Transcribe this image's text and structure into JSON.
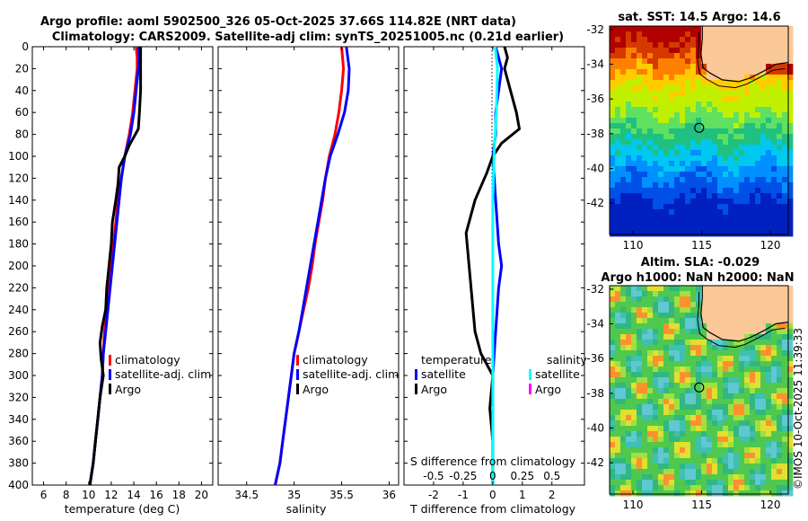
{
  "title": {
    "line1": "Argo profile: aoml 5902500_326 05-Oct-2025 37.66S 114.82E (NRT data)",
    "line2": "Climatology: CARS2009. Satellite-adj clim: synTS_20251005.nc (0.21d earlier)"
  },
  "side_label": "©IMOS 10-Oct-2025 11:39:33",
  "colors": {
    "climatology": "#ff0000",
    "satellite": "#0000ff",
    "argo": "#000000",
    "sal_satellite": "#00ffff",
    "sal_argo": "#ff00ff",
    "land": "#fbc898"
  },
  "chart_data": [
    {
      "type": "line",
      "id": "temperature",
      "xlabel": "temperature (deg C)",
      "ylabel": "",
      "xlim": [
        5,
        21
      ],
      "ylim": [
        400,
        0
      ],
      "xticks": [
        "6",
        "8",
        "10",
        "12",
        "14",
        "16",
        "18",
        "20"
      ],
      "xtick_values": [
        6,
        8,
        10,
        12,
        14,
        16,
        18,
        20
      ],
      "yticks": [
        "0",
        "20",
        "40",
        "60",
        "80",
        "100",
        "120",
        "140",
        "160",
        "180",
        "200",
        "220",
        "240",
        "260",
        "280",
        "300",
        "320",
        "340",
        "360",
        "380",
        "400"
      ],
      "ytick_values": [
        0,
        20,
        40,
        60,
        80,
        100,
        120,
        140,
        160,
        180,
        200,
        220,
        240,
        260,
        280,
        300,
        320,
        340,
        360,
        380,
        400
      ],
      "legend": [
        "climatology",
        "satellite-adj. clim",
        "Argo"
      ],
      "series": [
        {
          "name": "climatology",
          "color": "#ff0000",
          "points": [
            [
              14.2,
              0
            ],
            [
              14.3,
              10
            ],
            [
              14.3,
              20
            ],
            [
              14.1,
              40
            ],
            [
              13.9,
              60
            ],
            [
              13.6,
              80
            ],
            [
              13.2,
              100
            ],
            [
              12.9,
              120
            ],
            [
              12.6,
              140
            ],
            [
              12.4,
              160
            ],
            [
              12.2,
              180
            ],
            [
              12.0,
              200
            ],
            [
              11.8,
              220
            ],
            [
              11.6,
              240
            ],
            [
              11.4,
              260
            ],
            [
              11.3,
              280
            ],
            [
              11.2,
              300
            ],
            [
              11.0,
              320
            ],
            [
              10.8,
              340
            ],
            [
              10.6,
              360
            ],
            [
              10.4,
              380
            ],
            [
              10.1,
              400
            ]
          ]
        },
        {
          "name": "satellite-adj. clim",
          "color": "#0000ff",
          "points": [
            [
              14.4,
              0
            ],
            [
              14.5,
              10
            ],
            [
              14.4,
              20
            ],
            [
              14.2,
              40
            ],
            [
              14.0,
              60
            ],
            [
              13.7,
              80
            ],
            [
              13.2,
              100
            ],
            [
              12.9,
              120
            ],
            [
              12.7,
              140
            ],
            [
              12.5,
              160
            ],
            [
              12.3,
              180
            ],
            [
              12.1,
              200
            ],
            [
              11.9,
              220
            ],
            [
              11.7,
              240
            ],
            [
              11.5,
              260
            ],
            [
              11.3,
              280
            ],
            [
              11.2,
              300
            ],
            [
              11.0,
              320
            ],
            [
              10.8,
              340
            ],
            [
              10.6,
              360
            ],
            [
              10.4,
              380
            ],
            [
              10.1,
              400
            ]
          ]
        },
        {
          "name": "Argo",
          "color": "#000000",
          "points": [
            [
              14.6,
              0
            ],
            [
              14.6,
              20
            ],
            [
              14.6,
              40
            ],
            [
              14.5,
              60
            ],
            [
              14.4,
              75
            ],
            [
              13.6,
              90
            ],
            [
              13.2,
              100
            ],
            [
              12.7,
              110
            ],
            [
              12.6,
              125
            ],
            [
              12.4,
              140
            ],
            [
              12.1,
              160
            ],
            [
              12.0,
              180
            ],
            [
              11.8,
              200
            ],
            [
              11.6,
              220
            ],
            [
              11.5,
              240
            ],
            [
              11.2,
              255
            ],
            [
              11.0,
              270
            ],
            [
              11.1,
              285
            ],
            [
              11.3,
              300
            ],
            [
              11.0,
              320
            ],
            [
              10.8,
              340
            ],
            [
              10.6,
              360
            ],
            [
              10.4,
              380
            ],
            [
              10.1,
              400
            ]
          ]
        }
      ]
    },
    {
      "type": "line",
      "id": "salinity",
      "xlabel": "salinity",
      "xlim": [
        34.2,
        36.1
      ],
      "ylim": [
        400,
        0
      ],
      "xticks": [
        "34.5",
        "35",
        "35.5",
        "36"
      ],
      "xtick_values": [
        34.5,
        35.0,
        35.5,
        36.0
      ],
      "legend": [
        "climatology",
        "satellite-adj. clim",
        "Argo"
      ],
      "series": [
        {
          "name": "climatology",
          "color": "#ff0000",
          "points": [
            [
              35.5,
              0
            ],
            [
              35.52,
              20
            ],
            [
              35.5,
              40
            ],
            [
              35.47,
              60
            ],
            [
              35.43,
              80
            ],
            [
              35.37,
              100
            ],
            [
              35.33,
              120
            ],
            [
              35.3,
              140
            ],
            [
              35.26,
              160
            ],
            [
              35.22,
              180
            ],
            [
              35.19,
              200
            ],
            [
              35.15,
              220
            ],
            [
              35.1,
              240
            ],
            [
              35.05,
              260
            ],
            [
              35.0,
              280
            ],
            [
              34.97,
              300
            ],
            [
              34.94,
              320
            ],
            [
              34.91,
              340
            ],
            [
              34.88,
              360
            ],
            [
              34.85,
              380
            ],
            [
              34.8,
              400
            ]
          ]
        },
        {
          "name": "satellite-adj. clim",
          "color": "#0000ff",
          "points": [
            [
              35.55,
              0
            ],
            [
              35.58,
              20
            ],
            [
              35.57,
              40
            ],
            [
              35.53,
              60
            ],
            [
              35.46,
              80
            ],
            [
              35.38,
              100
            ],
            [
              35.33,
              120
            ],
            [
              35.29,
              140
            ],
            [
              35.25,
              160
            ],
            [
              35.21,
              180
            ],
            [
              35.17,
              200
            ],
            [
              35.13,
              220
            ],
            [
              35.09,
              240
            ],
            [
              35.05,
              260
            ],
            [
              35.0,
              280
            ],
            [
              34.97,
              300
            ],
            [
              34.94,
              320
            ],
            [
              34.91,
              340
            ],
            [
              34.88,
              360
            ],
            [
              34.85,
              380
            ],
            [
              34.8,
              400
            ]
          ]
        }
      ]
    },
    {
      "type": "line",
      "id": "difference",
      "xlabel": "T difference from climatology",
      "x2label": "S difference from climatology",
      "xlim": [
        -3,
        3.1
      ],
      "ylim": [
        400,
        0
      ],
      "xticks": [
        "-2",
        "-1",
        "0",
        "1",
        "2"
      ],
      "xtick_values": [
        -2,
        -1,
        0,
        1,
        2
      ],
      "x2ticks": [
        "-0.5",
        "-0.25",
        "0",
        "0.25",
        "0.5"
      ],
      "x2tick_values": [
        -0.5,
        -0.25,
        0,
        0.25,
        0.5
      ],
      "x2lim": [
        -0.75,
        0.775
      ],
      "legend_t_title": "temperature",
      "legend_s_title": "salinity",
      "legend_t": [
        "satellite",
        "Argo"
      ],
      "legend_s": [
        "satellite",
        "Argo"
      ],
      "series": [
        {
          "name": "T satellite",
          "color": "#0000ff",
          "points": [
            [
              0.1,
              0
            ],
            [
              0.2,
              10
            ],
            [
              0.3,
              20
            ],
            [
              0.2,
              40
            ],
            [
              0.1,
              60
            ],
            [
              0.1,
              80
            ],
            [
              0.0,
              100
            ],
            [
              0.1,
              140
            ],
            [
              0.2,
              180
            ],
            [
              0.3,
              200
            ],
            [
              0.2,
              220
            ],
            [
              0.1,
              260
            ],
            [
              0.0,
              300
            ],
            [
              0.0,
              340
            ],
            [
              0.0,
              400
            ]
          ]
        },
        {
          "name": "Argo",
          "color": "#000000",
          "points": [
            [
              0.4,
              0
            ],
            [
              0.5,
              10
            ],
            [
              0.4,
              20
            ],
            [
              0.6,
              40
            ],
            [
              0.8,
              60
            ],
            [
              0.9,
              75
            ],
            [
              0.3,
              88
            ],
            [
              0.0,
              100
            ],
            [
              -0.2,
              115
            ],
            [
              -0.6,
              140
            ],
            [
              -0.9,
              170
            ],
            [
              -0.8,
              200
            ],
            [
              -0.7,
              230
            ],
            [
              -0.6,
              260
            ],
            [
              -0.4,
              280
            ],
            [
              0.0,
              300
            ],
            [
              -0.1,
              330
            ],
            [
              0.0,
              360
            ],
            [
              0.0,
              400
            ]
          ]
        },
        {
          "name": "S satellite",
          "color": "#00ffff",
          "points": [
            [
              0.02,
              0
            ],
            [
              0.04,
              20
            ],
            [
              0.03,
              60
            ],
            [
              0.01,
              100
            ],
            [
              0.0,
              140
            ],
            [
              0.0,
              200
            ],
            [
              0.0,
              260
            ],
            [
              0.0,
              320
            ],
            [
              0.0,
              400
            ]
          ]
        }
      ]
    },
    {
      "type": "heatmap",
      "id": "sst_map",
      "title": "sat. SST: 14.5 Argo: 14.6",
      "xticks": [
        "110",
        "115",
        "120"
      ],
      "xtick_values": [
        110,
        115,
        120
      ],
      "yticks": [
        "-32",
        "-34",
        "-36",
        "-38",
        "-40",
        "-42"
      ],
      "ytick_values": [
        -32,
        -34,
        -36,
        -38,
        -40,
        -42
      ],
      "xlim": [
        108.3,
        121.3
      ],
      "ylim": [
        -43.8,
        -31.8
      ],
      "marker": [
        114.82,
        -37.66
      ]
    },
    {
      "type": "heatmap",
      "id": "sla_map",
      "title": "Altim. SLA: -0.029",
      "subtitle": "Argo h1000: NaN h2000: NaN",
      "xticks": [
        "110",
        "115",
        "120"
      ],
      "xtick_values": [
        110,
        115,
        120
      ],
      "yticks": [
        "-32",
        "-34",
        "-36",
        "-38",
        "-40",
        "-42"
      ],
      "ytick_values": [
        -32,
        -34,
        -36,
        -38,
        -40,
        -42
      ],
      "xlim": [
        108.3,
        121.3
      ],
      "ylim": [
        -43.8,
        -31.8
      ],
      "marker": [
        114.82,
        -37.66
      ]
    }
  ]
}
